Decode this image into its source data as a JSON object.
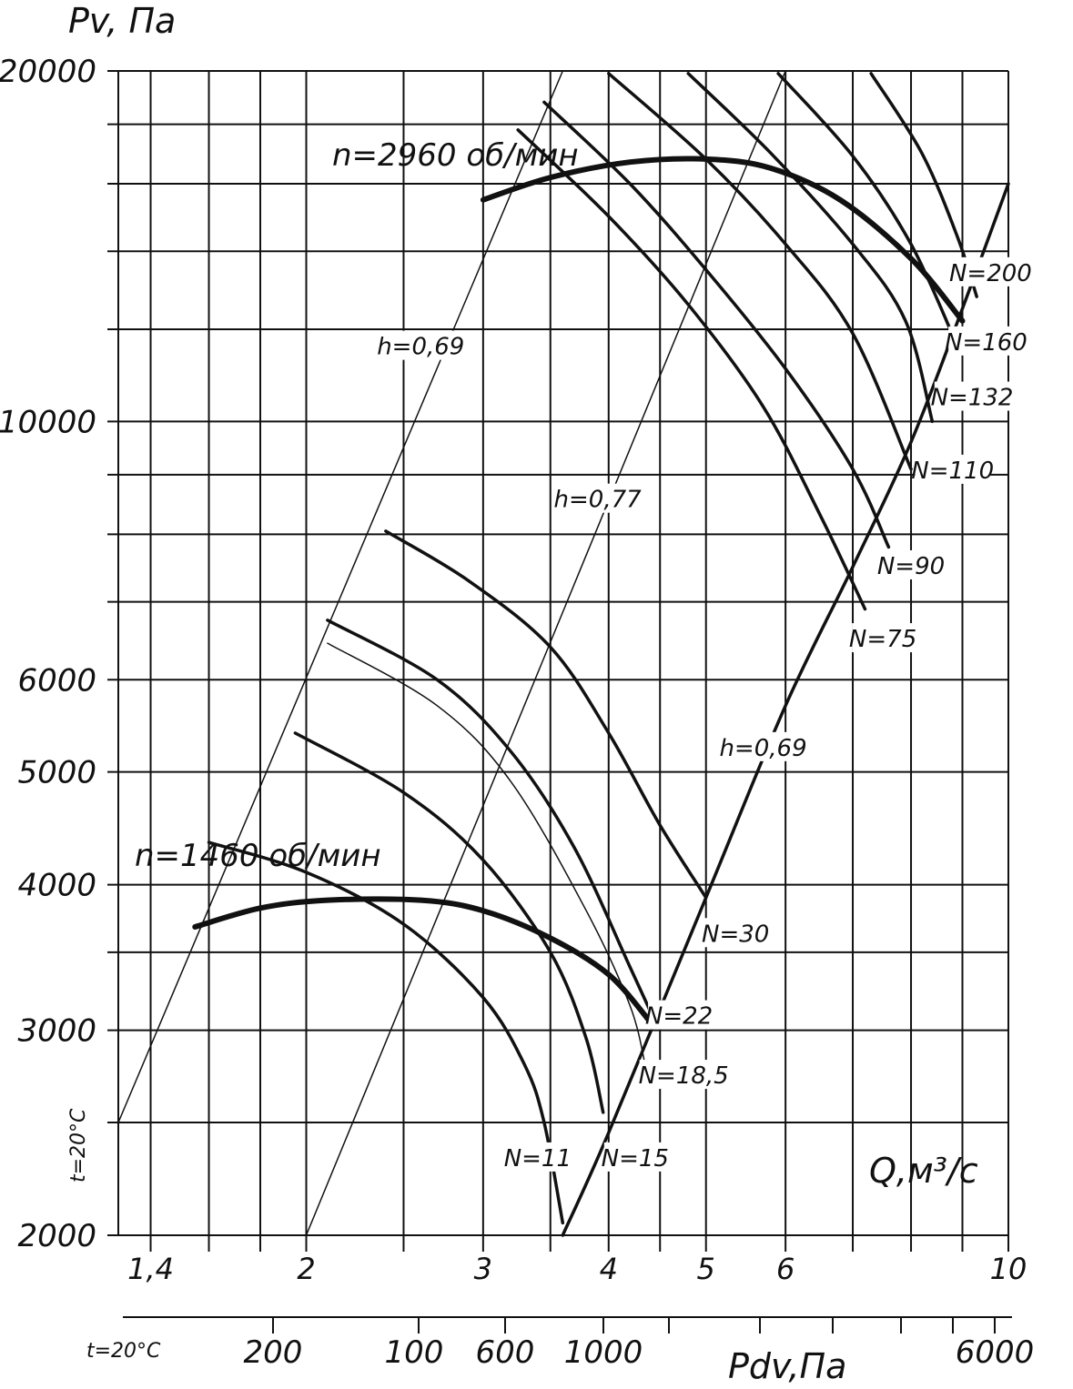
{
  "chart_data": {
    "type": "line",
    "title": "",
    "ylabel": "Pv, Па",
    "xlabel": "Q,м³/с",
    "x2label": "Pdv,Па",
    "temperature_note": "t=20°C",
    "x_scale": "log",
    "y_scale": "log",
    "xlim": [
      1.3,
      10
    ],
    "ylim": [
      2000,
      20000
    ],
    "x_tick_labels": [
      "1,4",
      "2",
      "3",
      "4",
      "5",
      "6",
      "10"
    ],
    "x_ticks": [
      1.4,
      2,
      3,
      4,
      5,
      6,
      10
    ],
    "y_tick_labels": [
      "2000",
      "3000",
      "4000",
      "5000",
      "6000",
      "10000",
      "20000"
    ],
    "y_ticks": [
      2000,
      3000,
      4000,
      5000,
      6000,
      10000,
      20000
    ],
    "pdv_tick_labels": [
      "200",
      "100",
      "600",
      "1000",
      "6000"
    ],
    "speed_labels": {
      "low": "n=1460 об/мин",
      "high": "n=2960 об/мин"
    },
    "efficiency_labels": [
      "h=0,69",
      "h=0,77",
      "h=0,69"
    ],
    "series": [
      {
        "name": "n=1460 об/мин",
        "weight": "heavy",
        "points": [
          [
            1.55,
            3680
          ],
          [
            1.8,
            3820
          ],
          [
            2.1,
            3880
          ],
          [
            2.6,
            3880
          ],
          [
            3.0,
            3800
          ],
          [
            3.5,
            3600
          ],
          [
            4.0,
            3350
          ],
          [
            4.4,
            3050
          ]
        ]
      },
      {
        "name": "n=2960 об/мин",
        "weight": "heavy",
        "points": [
          [
            3.0,
            15500
          ],
          [
            3.5,
            16200
          ],
          [
            4.2,
            16700
          ],
          [
            5.0,
            16800
          ],
          [
            5.8,
            16500
          ],
          [
            6.8,
            15500
          ],
          [
            8.0,
            13800
          ],
          [
            9.0,
            12200
          ]
        ]
      },
      {
        "name": "N=11",
        "weight": "medium",
        "points": [
          [
            1.6,
            4350
          ],
          [
            2.0,
            4100
          ],
          [
            2.5,
            3700
          ],
          [
            3.0,
            3200
          ],
          [
            3.3,
            2800
          ],
          [
            3.45,
            2500
          ],
          [
            3.6,
            2050
          ]
        ]
      },
      {
        "name": "N=15",
        "weight": "medium",
        "points": [
          [
            1.95,
            5400
          ],
          [
            2.5,
            4800
          ],
          [
            3.0,
            4200
          ],
          [
            3.5,
            3500
          ],
          [
            3.8,
            2950
          ],
          [
            3.95,
            2550
          ]
        ]
      },
      {
        "name": "N=18,5",
        "weight": "thin",
        "points": [
          [
            2.1,
            6450
          ],
          [
            2.7,
            5700
          ],
          [
            3.2,
            4900
          ],
          [
            3.8,
            3800
          ],
          [
            4.2,
            3150
          ],
          [
            4.35,
            2800
          ]
        ]
      },
      {
        "name": "N=22",
        "weight": "medium",
        "points": [
          [
            2.1,
            6750
          ],
          [
            2.7,
            6000
          ],
          [
            3.2,
            5200
          ],
          [
            3.7,
            4300
          ],
          [
            4.2,
            3400
          ],
          [
            4.45,
            3050
          ]
        ]
      },
      {
        "name": "N=30",
        "weight": "medium",
        "points": [
          [
            2.4,
            8050
          ],
          [
            2.9,
            7300
          ],
          [
            3.5,
            6400
          ],
          [
            4.0,
            5400
          ],
          [
            4.5,
            4500
          ],
          [
            5.0,
            3900
          ]
        ]
      },
      {
        "name": "N=75",
        "weight": "medium",
        "points": [
          [
            3.25,
            17800
          ],
          [
            4.0,
            15000
          ],
          [
            4.8,
            12600
          ],
          [
            5.7,
            10300
          ],
          [
            6.5,
            8300
          ],
          [
            7.2,
            6900
          ]
        ]
      },
      {
        "name": "N=90",
        "weight": "medium",
        "points": [
          [
            3.45,
            18800
          ],
          [
            4.2,
            16000
          ],
          [
            5.0,
            13500
          ],
          [
            6.0,
            11100
          ],
          [
            7.0,
            9100
          ],
          [
            7.6,
            7800
          ]
        ]
      },
      {
        "name": "N=110",
        "weight": "medium",
        "points": [
          [
            4.0,
            19900
          ],
          [
            5.0,
            16800
          ],
          [
            6.0,
            14200
          ],
          [
            7.0,
            11900
          ],
          [
            8.0,
            9100
          ]
        ]
      },
      {
        "name": "N=132",
        "weight": "medium",
        "points": [
          [
            4.8,
            19900
          ],
          [
            5.8,
            17000
          ],
          [
            7.0,
            14200
          ],
          [
            7.9,
            12200
          ],
          [
            8.4,
            10000
          ]
        ]
      },
      {
        "name": "N=160",
        "weight": "medium",
        "points": [
          [
            5.9,
            19900
          ],
          [
            7.0,
            16900
          ],
          [
            8.0,
            14200
          ],
          [
            8.9,
            11600
          ]
        ]
      },
      {
        "name": "N=200",
        "weight": "medium",
        "points": [
          [
            7.3,
            19900
          ],
          [
            8.2,
            17000
          ],
          [
            8.9,
            14400
          ],
          [
            9.3,
            12800
          ]
        ]
      },
      {
        "name": "h=0,69",
        "weight": "medium",
        "points": [
          [
            3.6,
            2000
          ],
          [
            4.0,
            2450
          ],
          [
            5.0,
            3900
          ],
          [
            6.0,
            5700
          ],
          [
            7.0,
            7500
          ],
          [
            8.0,
            9600
          ],
          [
            9.0,
            12500
          ],
          [
            10.0,
            16000
          ]
        ]
      },
      {
        "name": "h=0,69",
        "weight": "thin",
        "points": [
          [
            1.3,
            2500
          ],
          [
            3.6,
            20000
          ]
        ]
      },
      {
        "name": "h=0,77",
        "weight": "thin",
        "points": [
          [
            2.0,
            2000
          ],
          [
            6.0,
            20000
          ]
        ]
      }
    ],
    "curve_labels": [
      {
        "text": "N=11",
        "x": 3.4,
        "y": 2310
      },
      {
        "text": "N=15",
        "x": 4.25,
        "y": 2310
      },
      {
        "text": "N=18,5",
        "x": 4.75,
        "y": 2720
      },
      {
        "text": "N=22",
        "x": 4.7,
        "y": 3060
      },
      {
        "text": "N=30",
        "x": 5.35,
        "y": 3600
      },
      {
        "text": "N=75",
        "x": 7.5,
        "y": 6450
      },
      {
        "text": "N=90",
        "x": 8.0,
        "y": 7450
      },
      {
        "text": "N=110",
        "x": 8.8,
        "y": 9000
      },
      {
        "text": "N=132",
        "x": 9.2,
        "y": 10400
      },
      {
        "text": "N=160",
        "x": 9.5,
        "y": 11600
      },
      {
        "text": "N=200",
        "x": 9.6,
        "y": 13300
      },
      {
        "text": "h=0,69",
        "x": 2.6,
        "y": 11500
      },
      {
        "text": "h=0,77",
        "x": 3.9,
        "y": 8500
      },
      {
        "text": "h=0,69",
        "x": 5.7,
        "y": 5200
      }
    ]
  }
}
